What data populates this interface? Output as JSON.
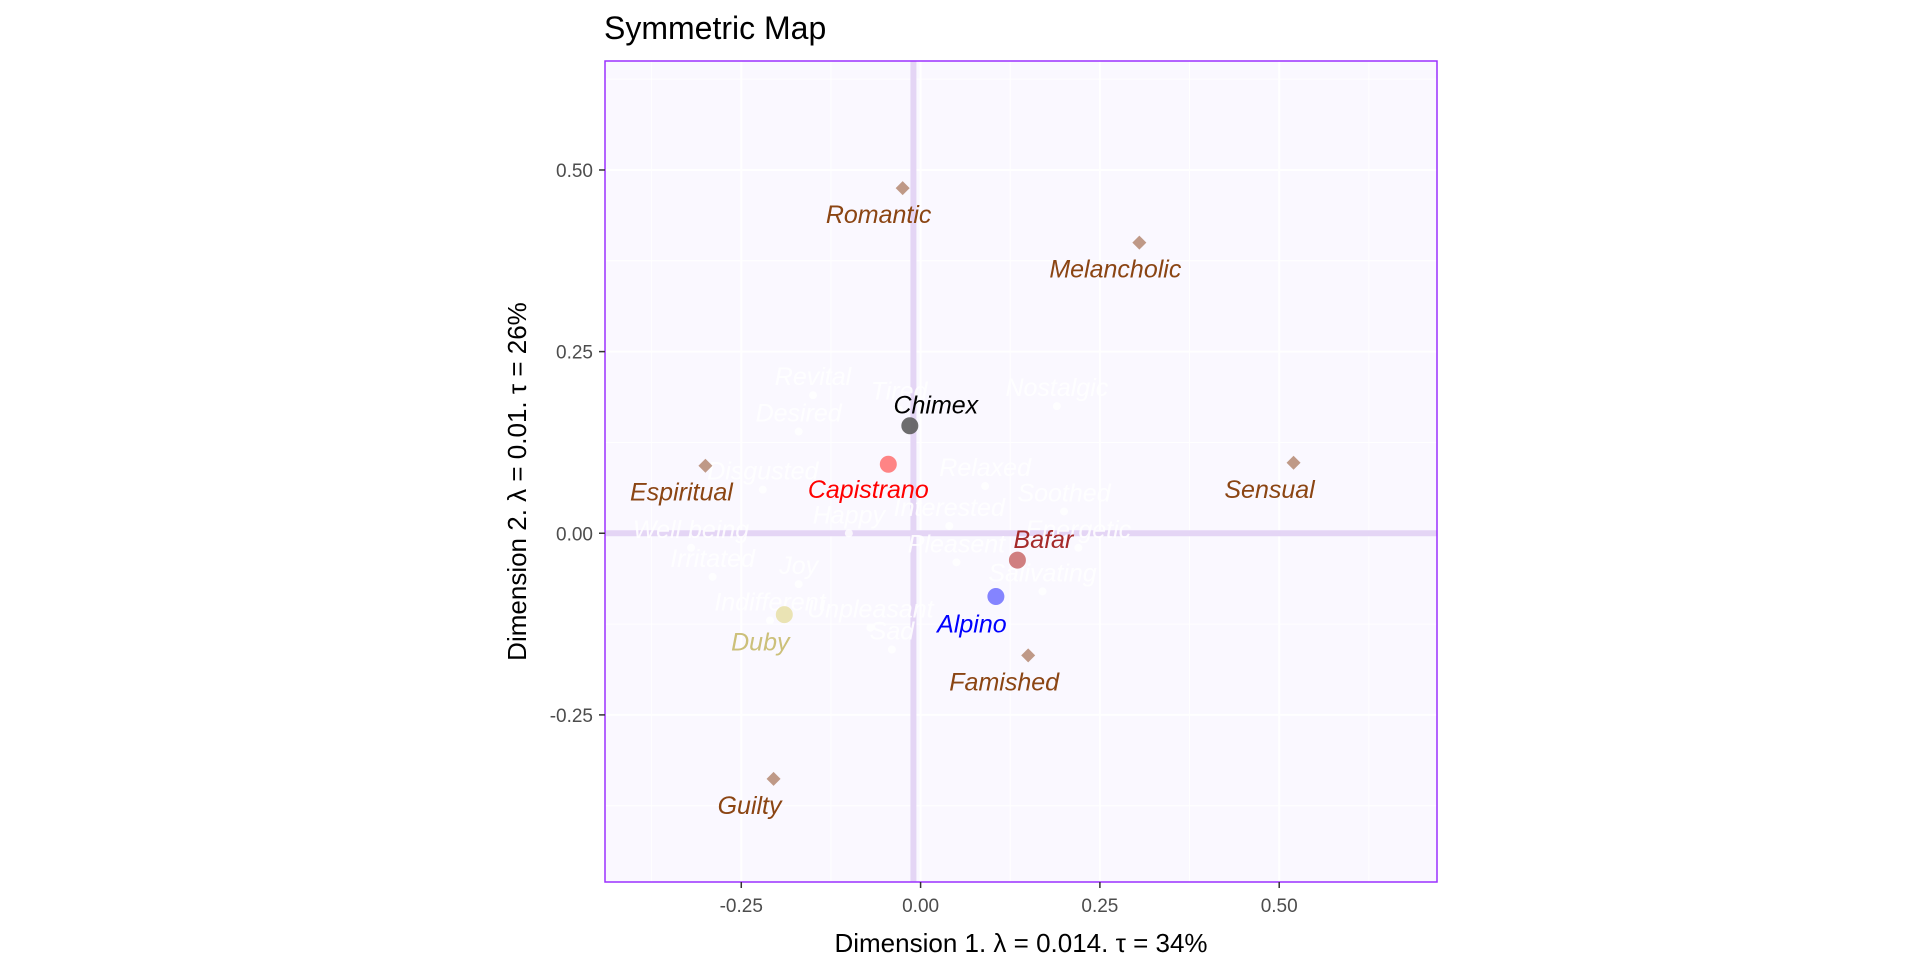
{
  "chart_data": {
    "type": "scatter",
    "title": "Symmetric Map",
    "xlabel": {
      "prefix": "Dimension 1.",
      "eigen": "0.014.",
      "inertia": "34%"
    },
    "ylabel": {
      "prefix": "Dimension 2.",
      "eigen": "0.01.",
      "inertia": "26%"
    },
    "xlim": [
      -0.44,
      0.72
    ],
    "ylim": [
      -0.48,
      0.65
    ],
    "x_ticks": [
      -0.25,
      0,
      0.25,
      0.5
    ],
    "x_tick_labels": [
      "-0.25",
      "0.00",
      "0.25",
      "0.50"
    ],
    "y_ticks": [
      -0.25,
      0,
      0.25,
      0.5
    ],
    "y_tick_labels": [
      "-0.25",
      "0.00",
      "0.25",
      "0.50"
    ],
    "grid": true,
    "colors": {
      "panel_bg": "#faf8ff",
      "panel_border": "#9b30ff",
      "zero_line": "#e4d5f5",
      "emotion_point": "#bf9987",
      "emotion_label": "#8b4513",
      "faded_label": "#ffffff"
    },
    "series": [
      {
        "name": "Column points",
        "marker": "diamond",
        "points": [
          {
            "label": "Romantic",
            "x": -0.025,
            "y": 0.475
          },
          {
            "label": "Melancholic",
            "x": 0.305,
            "y": 0.4
          },
          {
            "label": "Sensual",
            "x": 0.52,
            "y": 0.097
          },
          {
            "label": "Espiritual",
            "x": -0.3,
            "y": 0.093
          },
          {
            "label": "Famished",
            "x": 0.15,
            "y": -0.168
          },
          {
            "label": "Guilty",
            "x": -0.205,
            "y": -0.338
          }
        ]
      },
      {
        "name": "Row points",
        "marker": "circle",
        "points": [
          {
            "label": "Chimex",
            "x": -0.015,
            "y": 0.148,
            "color": "#555555",
            "label_color": "#000000"
          },
          {
            "label": "Capistrano",
            "x": -0.045,
            "y": 0.095,
            "color": "#ff7070",
            "label_color": "#ff0000"
          },
          {
            "label": "Bafar",
            "x": 0.135,
            "y": -0.037,
            "color": "#c96a6a",
            "label_color": "#a52a2a"
          },
          {
            "label": "Alpino",
            "x": 0.105,
            "y": -0.087,
            "color": "#7070ff",
            "label_color": "#0000ff"
          },
          {
            "label": "Duby",
            "x": -0.19,
            "y": -0.112,
            "color": "#e8e0a8",
            "label_color": "#ccc07a"
          }
        ]
      },
      {
        "name": "Faded points",
        "marker": "circle",
        "points": [
          {
            "label": "Revital",
            "x": -0.15,
            "y": 0.19
          },
          {
            "label": "Tired",
            "x": -0.03,
            "y": 0.17
          },
          {
            "label": "Desired",
            "x": -0.17,
            "y": 0.14
          },
          {
            "label": "Nostalgic",
            "x": 0.19,
            "y": 0.175
          },
          {
            "label": "Relaxed",
            "x": 0.09,
            "y": 0.065
          },
          {
            "label": "Disgusted",
            "x": -0.22,
            "y": 0.06
          },
          {
            "label": "Interested",
            "x": 0.04,
            "y": 0.01
          },
          {
            "label": "Soothed",
            "x": 0.2,
            "y": 0.03
          },
          {
            "label": "Well being",
            "x": -0.32,
            "y": -0.02
          },
          {
            "label": "Happy",
            "x": -0.1,
            "y": 0.0
          },
          {
            "label": "Energetic",
            "x": 0.22,
            "y": -0.02
          },
          {
            "label": "Irritated",
            "x": -0.29,
            "y": -0.06
          },
          {
            "label": "Joy",
            "x": -0.17,
            "y": -0.07
          },
          {
            "label": "Pleasent",
            "x": 0.05,
            "y": -0.04
          },
          {
            "label": "Salivating",
            "x": 0.17,
            "y": -0.08
          },
          {
            "label": "Indifferent",
            "x": -0.21,
            "y": -0.12
          },
          {
            "label": "Unpleasant",
            "x": -0.07,
            "y": -0.13
          },
          {
            "label": "Sad",
            "x": -0.04,
            "y": -0.16
          }
        ]
      }
    ]
  }
}
